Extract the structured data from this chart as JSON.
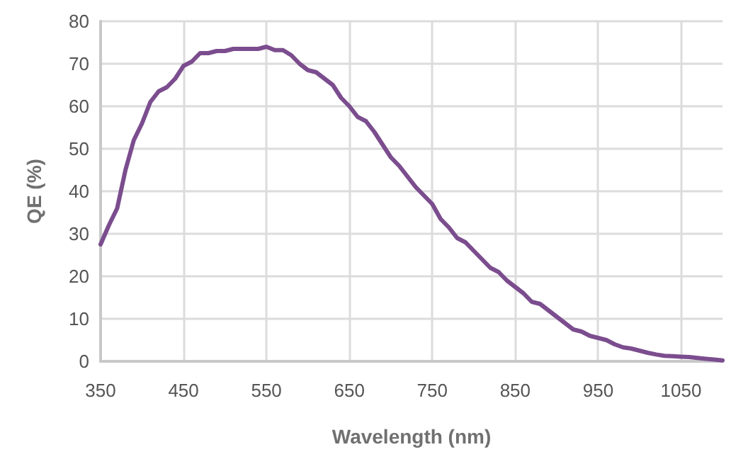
{
  "chart_data": {
    "type": "line",
    "xlabel": "Wavelength (nm)",
    "ylabel": "QE (%)",
    "xlim": [
      350,
      1100
    ],
    "xticks": [
      350,
      450,
      550,
      650,
      750,
      850,
      950,
      1050
    ],
    "ylim": [
      0,
      80
    ],
    "yticks": [
      0,
      10,
      20,
      30,
      40,
      50,
      60,
      70,
      80
    ],
    "grid": true,
    "marker": "none",
    "line_style": "solid",
    "x": [
      350,
      360,
      370,
      380,
      390,
      400,
      410,
      420,
      430,
      440,
      450,
      460,
      470,
      480,
      490,
      500,
      510,
      520,
      530,
      540,
      550,
      560,
      570,
      580,
      590,
      600,
      610,
      620,
      630,
      640,
      650,
      660,
      670,
      680,
      690,
      700,
      710,
      720,
      730,
      740,
      750,
      760,
      770,
      780,
      790,
      800,
      810,
      820,
      830,
      840,
      850,
      860,
      870,
      880,
      890,
      900,
      910,
      920,
      930,
      940,
      950,
      960,
      970,
      980,
      990,
      1000,
      1010,
      1020,
      1030,
      1040,
      1050,
      1060,
      1070,
      1080,
      1090,
      1100
    ],
    "series": [
      {
        "color": "#7b4d8e",
        "values": [
          27.5,
          32,
          36,
          45,
          52,
          56,
          61,
          63.5,
          64.5,
          66.5,
          69.5,
          70.5,
          72.5,
          72.5,
          73,
          73,
          73.5,
          73.5,
          73.5,
          73.5,
          74,
          73.2,
          73.2,
          72,
          70,
          68.5,
          68,
          66.5,
          65,
          62,
          60,
          57.5,
          56.5,
          54,
          51,
          48,
          46,
          43.5,
          41,
          39,
          37,
          33.5,
          31.5,
          29,
          28,
          26,
          24,
          22,
          21,
          19,
          17.5,
          16,
          14,
          13.5,
          12,
          10.5,
          9,
          7.5,
          7,
          6,
          5.5,
          5,
          4,
          3.3,
          3,
          2.5,
          2,
          1.6,
          1.3,
          1.2,
          1.1,
          1,
          0.8,
          0.6,
          0.4,
          0.2
        ]
      }
    ]
  }
}
